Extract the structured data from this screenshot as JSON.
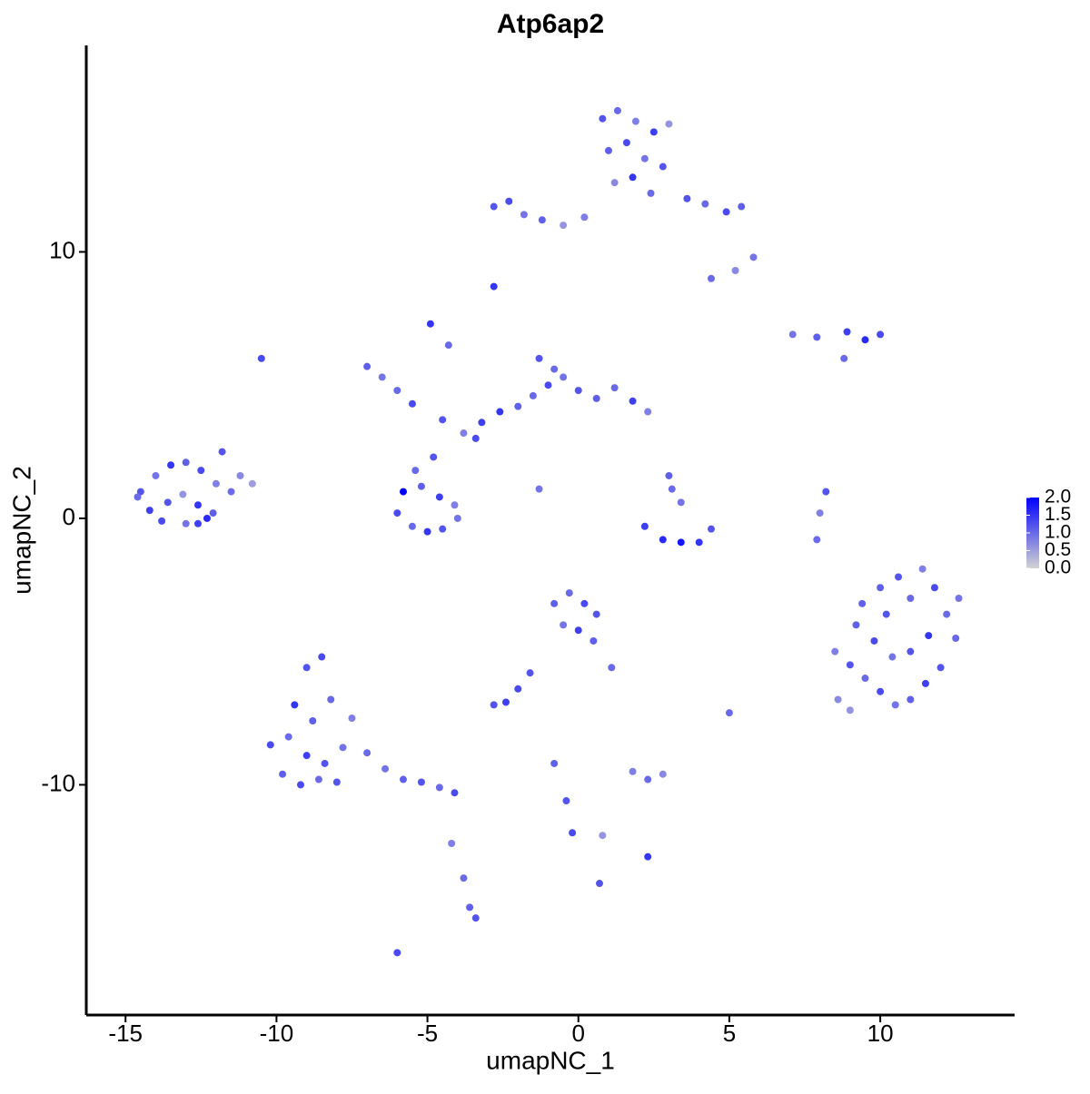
{
  "chart_data": {
    "type": "scatter",
    "title": "Atp6ap2",
    "x_label": "umapNC_1",
    "y_label": "umapNC_2",
    "xlim": [
      -16.3,
      14.45
    ],
    "ylim": [
      -18.64,
      17.75
    ],
    "xticks": [
      -15,
      -10,
      -5,
      0,
      5,
      10
    ],
    "yticks": [
      -10,
      0,
      10
    ],
    "grid": false,
    "color_low": "#d3d3d3",
    "color_high": "#0000ff",
    "legend_lim": [
      0,
      2
    ],
    "legend_ticks": [
      {
        "value": 0,
        "label": "0.0"
      },
      {
        "value": 0.5,
        "label": "0.5"
      },
      {
        "value": 1,
        "label": "1.0"
      },
      {
        "value": 1.5,
        "label": "1.5"
      },
      {
        "value": 2,
        "label": "2.0"
      }
    ],
    "x": [
      -14.5,
      -14.0,
      -13.5,
      -13.0,
      -12.5,
      -12.0,
      -11.5,
      -14.2,
      -13.6,
      -13.1,
      -12.6,
      -12.1,
      -14.6,
      -13.8,
      -13.0,
      -12.3,
      -11.2,
      -10.8,
      -11.8,
      -12.6,
      0.8,
      1.3,
      1.9,
      2.5,
      3.0,
      1.0,
      1.6,
      2.2,
      2.8,
      1.2,
      1.8,
      2.4,
      -2.8,
      -2.3,
      -1.8,
      -1.2,
      -0.5,
      0.2,
      3.6,
      4.2,
      4.9,
      5.4,
      5.8,
      5.2,
      4.4,
      -6.0,
      -5.5,
      -5.0,
      -4.5,
      -4.0,
      -5.8,
      -5.2,
      -4.6,
      -4.1,
      -5.4,
      -4.8,
      -7.0,
      -6.5,
      -6.0,
      -5.5,
      -4.5,
      -3.8,
      -3.2,
      -2.6,
      -2.0,
      -1.5,
      -1.0,
      -0.5,
      0.0,
      0.6,
      1.2,
      1.8,
      2.3,
      -1.3,
      -0.8,
      -4.3,
      -3.4,
      -1.3,
      -4.9,
      2.2,
      2.8,
      3.4,
      4.0,
      4.4,
      3.1,
      3.4,
      3.0,
      8.5,
      9.0,
      9.5,
      10.0,
      10.5,
      11.0,
      11.5,
      12.0,
      12.5,
      9.2,
      9.8,
      10.4,
      11.0,
      11.6,
      12.2,
      8.6,
      9.4,
      10.2,
      11.0,
      11.8,
      12.6,
      10.6,
      11.4,
      10.0,
      9.0,
      -10.2,
      -9.6,
      -9.0,
      -8.4,
      -7.8,
      -9.8,
      -9.2,
      -8.6,
      -8.0,
      -7.5,
      -9.4,
      -8.8,
      -8.2,
      -9.0,
      -8.5,
      -7.0,
      -6.4,
      -5.8,
      -5.2,
      -4.6,
      -4.1,
      -4.2,
      -3.8,
      -3.6,
      -3.4,
      -0.8,
      -0.3,
      0.2,
      0.6,
      -0.5,
      0.0,
      0.5,
      1.1,
      -1.6,
      -2.0,
      -2.4,
      -2.8,
      1.8,
      2.3,
      2.8,
      -0.8,
      -0.4,
      -0.2,
      0.8,
      2.3,
      8.9,
      9.5,
      10.0,
      7.1,
      7.9,
      8.8,
      8.2,
      8.0,
      7.9,
      -2.8,
      -6.0,
      0.7,
      -10.5,
      5.0
    ],
    "y": [
      1.0,
      1.6,
      2.0,
      2.1,
      1.8,
      1.3,
      1.0,
      0.3,
      0.6,
      0.9,
      0.5,
      0.2,
      0.8,
      -0.1,
      -0.2,
      0.0,
      1.6,
      1.3,
      2.5,
      -0.2,
      15.0,
      15.3,
      14.9,
      14.5,
      14.8,
      13.8,
      14.1,
      13.5,
      13.2,
      12.6,
      12.8,
      12.2,
      11.7,
      11.9,
      11.4,
      11.2,
      11.0,
      11.3,
      12.0,
      11.8,
      11.5,
      11.7,
      9.8,
      9.3,
      9.0,
      0.2,
      -0.3,
      -0.5,
      -0.4,
      0.0,
      1.0,
      1.2,
      0.8,
      0.5,
      1.8,
      2.3,
      5.7,
      5.3,
      4.8,
      4.3,
      3.7,
      3.2,
      3.6,
      4.0,
      4.2,
      4.6,
      5.0,
      5.3,
      4.8,
      4.5,
      4.9,
      4.4,
      4.0,
      6.0,
      5.6,
      6.5,
      3.0,
      1.1,
      7.3,
      -0.3,
      -0.8,
      -0.9,
      -0.9,
      -0.4,
      1.1,
      0.6,
      1.6,
      -5.0,
      -5.5,
      -6.0,
      -6.5,
      -7.0,
      -6.8,
      -6.2,
      -5.6,
      -4.5,
      -4.0,
      -4.6,
      -5.2,
      -5.0,
      -4.4,
      -3.6,
      -6.8,
      -3.2,
      -3.6,
      -3.0,
      -2.6,
      -3.0,
      -2.2,
      -1.9,
      -2.6,
      -7.2,
      -8.5,
      -8.2,
      -8.9,
      -9.2,
      -8.6,
      -9.6,
      -10.0,
      -9.8,
      -9.9,
      -7.5,
      -7.0,
      -7.6,
      -6.8,
      -5.6,
      -5.2,
      -8.8,
      -9.4,
      -9.8,
      -9.9,
      -10.1,
      -10.3,
      -12.2,
      -13.5,
      -14.6,
      -15.0,
      -3.2,
      -2.8,
      -3.2,
      -3.6,
      -4.0,
      -4.2,
      -4.6,
      -5.6,
      -5.8,
      -6.4,
      -6.9,
      -7.0,
      -9.5,
      -9.8,
      -9.6,
      -9.2,
      -10.6,
      -11.8,
      -11.9,
      -12.7,
      7.0,
      6.7,
      6.9,
      6.9,
      6.8,
      6.0,
      1.0,
      0.2,
      -0.8,
      8.7,
      -16.3,
      -13.7,
      6.0,
      -7.3
    ],
    "values": [
      1.2,
      0.9,
      1.5,
      1.1,
      1.3,
      0.8,
      1.0,
      1.4,
      1.2,
      0.6,
      1.5,
      1.1,
      1.0,
      1.3,
      0.9,
      1.6,
      0.7,
      0.5,
      1.2,
      1.4,
      1.2,
      1.0,
      0.8,
      1.4,
      0.6,
      1.1,
      1.3,
      0.9,
      1.2,
      0.7,
      1.5,
      1.0,
      1.2,
      1.3,
      0.9,
      1.1,
      0.6,
      0.8,
      1.2,
      1.0,
      1.3,
      1.1,
      0.9,
      0.7,
      1.0,
      1.3,
      1.0,
      1.5,
      1.2,
      0.9,
      2.0,
      1.1,
      1.4,
      0.8,
      1.0,
      1.2,
      1.1,
      0.9,
      1.0,
      1.3,
      1.2,
      0.8,
      1.4,
      1.5,
      1.1,
      1.0,
      1.3,
      0.9,
      1.2,
      1.1,
      1.0,
      1.4,
      0.8,
      1.2,
      1.0,
      1.0,
      1.3,
      0.9,
      1.5,
      1.4,
      1.6,
      1.8,
      1.5,
      1.2,
      1.0,
      0.9,
      1.1,
      0.8,
      1.2,
      1.0,
      1.3,
      0.9,
      1.1,
      1.4,
      1.2,
      1.0,
      1.1,
      1.3,
      0.9,
      1.2,
      1.5,
      1.0,
      0.7,
      1.1,
      1.2,
      1.0,
      1.3,
      0.9,
      1.2,
      0.8,
      1.1,
      0.6,
      1.3,
      1.0,
      1.4,
      1.2,
      0.9,
      1.1,
      1.3,
      1.0,
      1.2,
      0.8,
      1.5,
      1.1,
      1.0,
      1.2,
      1.3,
      1.0,
      0.9,
      1.1,
      1.2,
      1.0,
      1.3,
      0.8,
      1.0,
      1.1,
      1.2,
      1.1,
      1.0,
      1.3,
      1.2,
      0.9,
      1.4,
      1.1,
      1.0,
      1.2,
      1.3,
      1.4,
      1.2,
      0.8,
      1.0,
      0.7,
      1.1,
      1.2,
      1.3,
      0.6,
      1.5,
      1.4,
      1.6,
      1.3,
      0.9,
      1.1,
      1.0,
      1.2,
      0.8,
      1.0,
      1.5,
      1.3,
      1.2,
      1.3,
      1.0
    ]
  }
}
